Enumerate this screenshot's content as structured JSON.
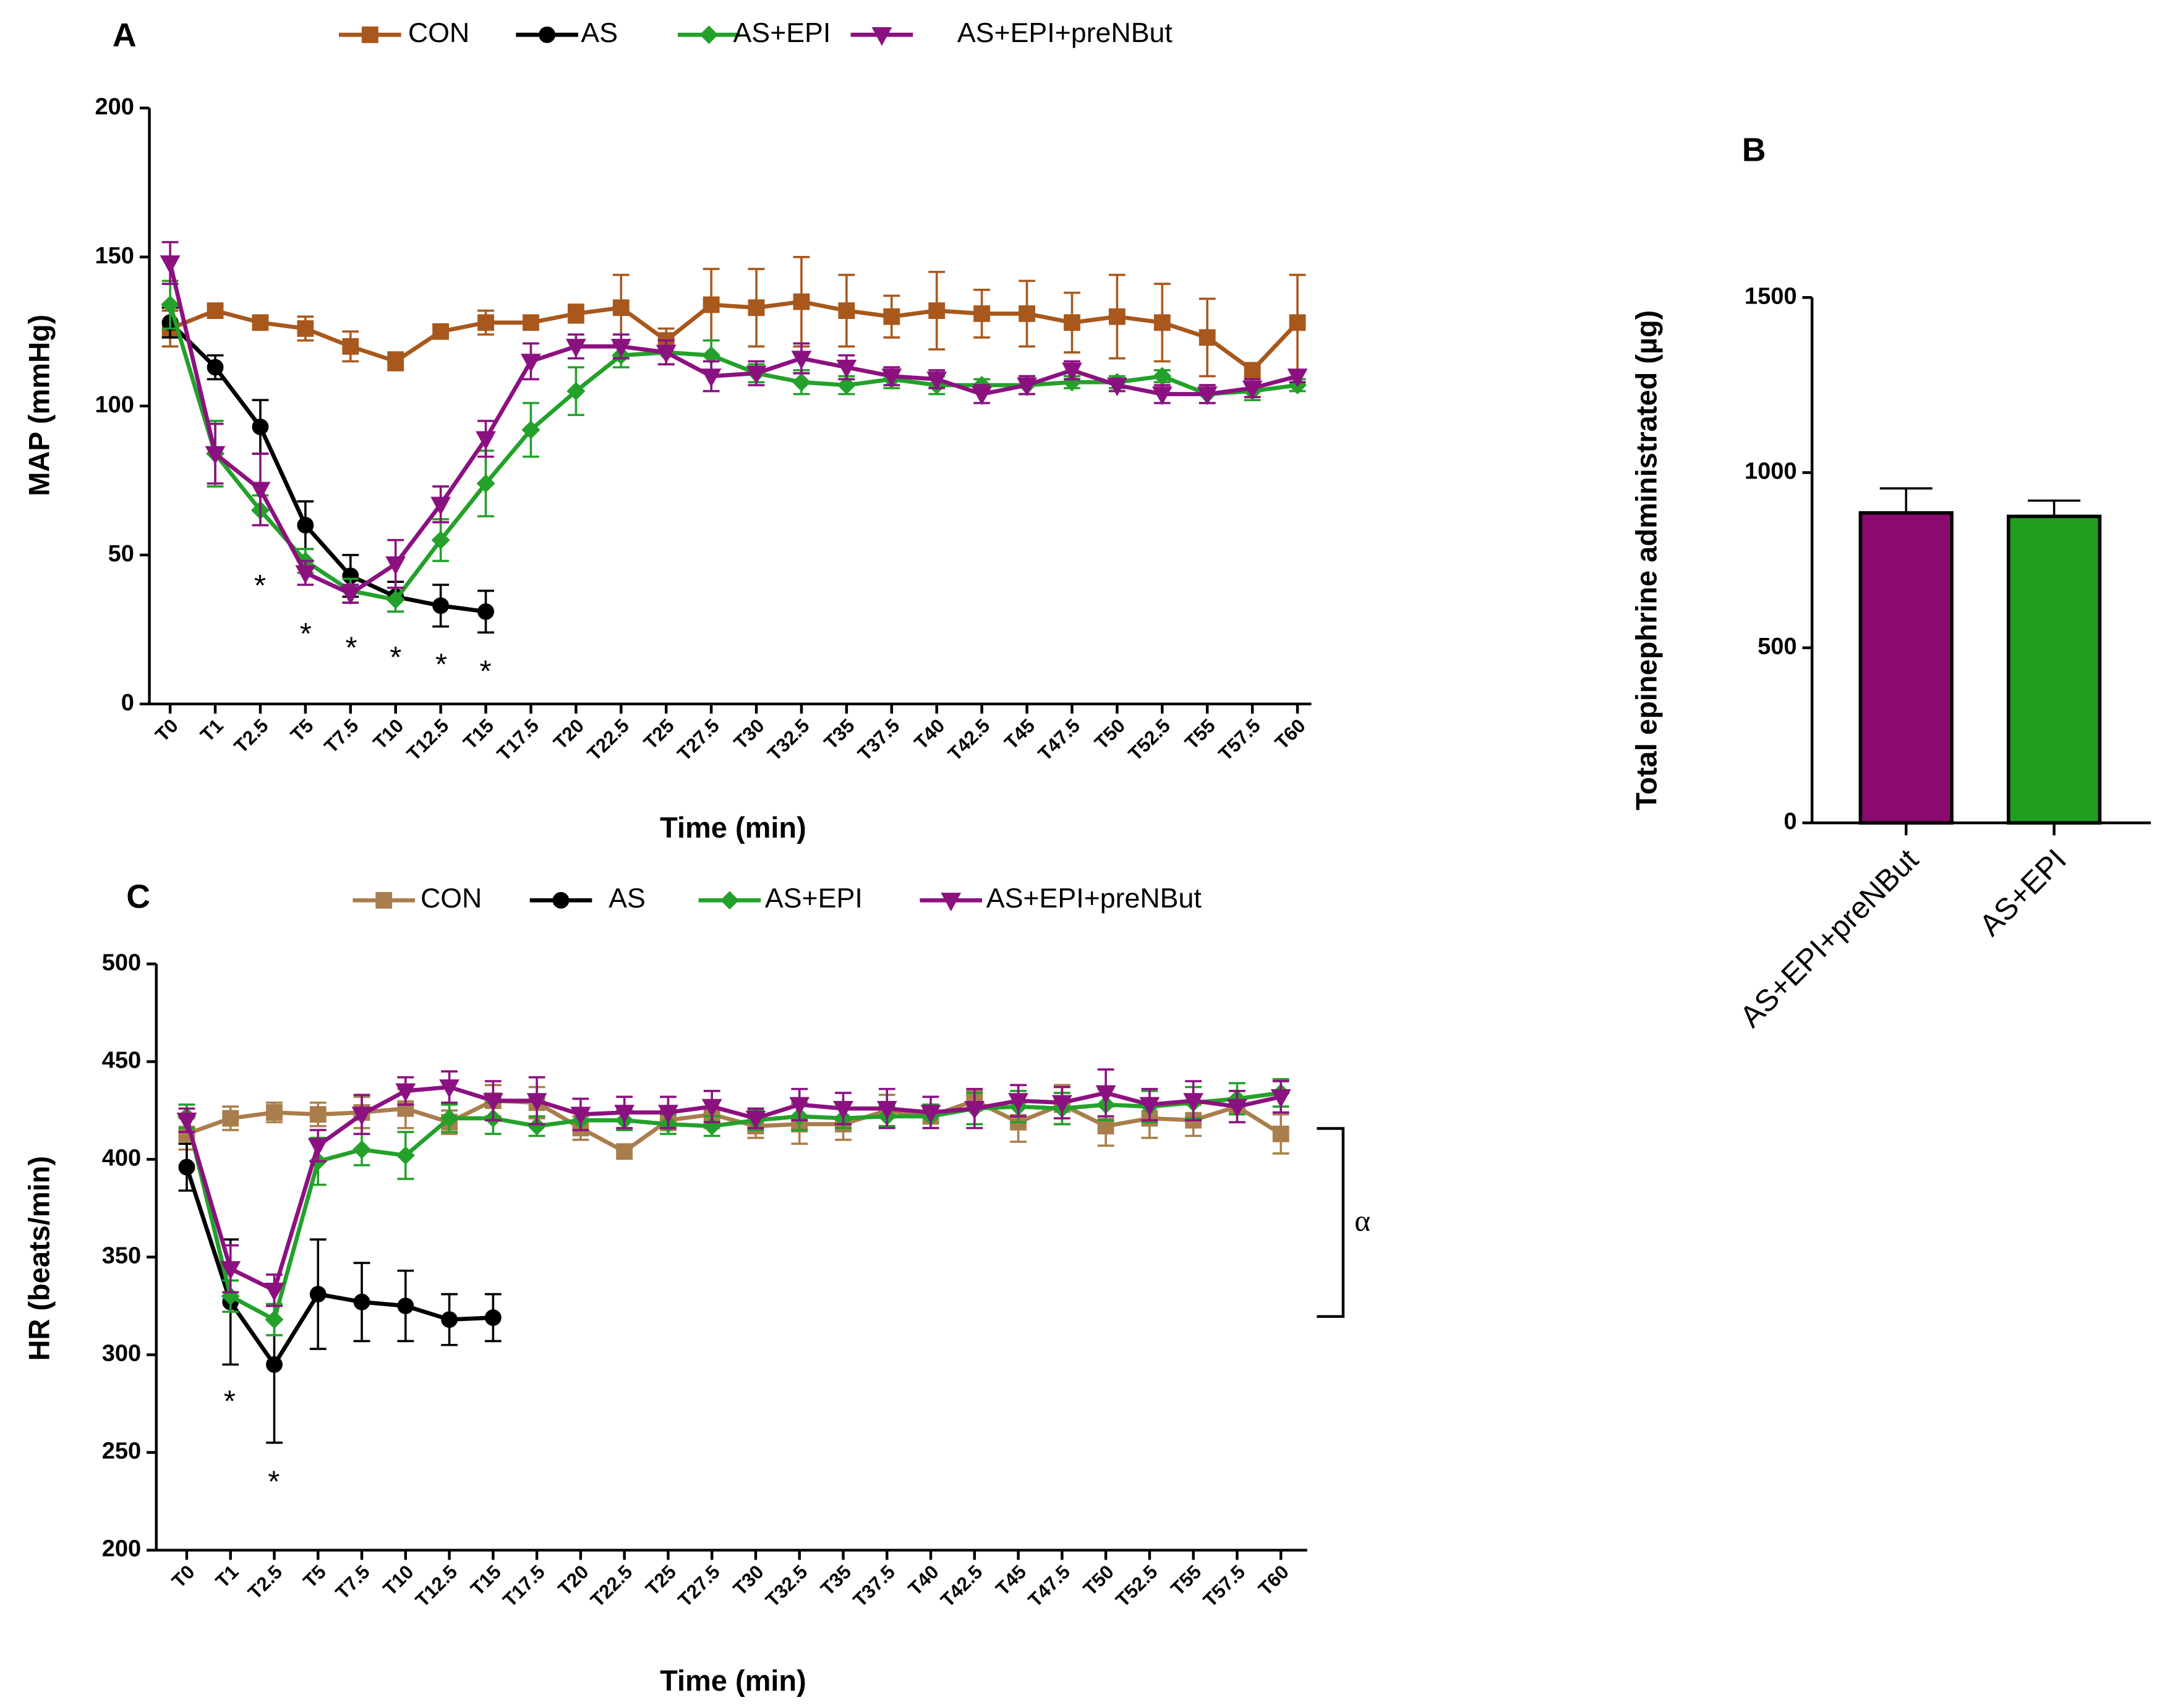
{
  "chart_data": [
    {
      "type": "line",
      "panel": "A",
      "ylabel": "MAP (mmHg)",
      "xlabel": "Time (min)",
      "categories": [
        "T0",
        "T1",
        "T2.5",
        "T5",
        "T7.5",
        "T10",
        "T12.5",
        "T15",
        "T17.5",
        "T20",
        "T22.5",
        "T25",
        "T27.5",
        "T30",
        "T32.5",
        "T35",
        "T37.5",
        "T40",
        "T42.5",
        "T45",
        "T47.5",
        "T50",
        "T52.5",
        "T55",
        "T57.5",
        "T60"
      ],
      "ylim": [
        0,
        200
      ],
      "yticks": [
        0,
        50,
        100,
        150,
        200
      ],
      "legend": "top",
      "series": [
        {
          "name": "CON",
          "color": "#a8581c",
          "marker": "square",
          "values": [
            126,
            132,
            128,
            126,
            120,
            115,
            125,
            128,
            128,
            131,
            133,
            122,
            134,
            133,
            135,
            132,
            130,
            132,
            131,
            131,
            128,
            130,
            128,
            123,
            112,
            128
          ],
          "errors": [
            6,
            2,
            2,
            4,
            5,
            3,
            2,
            4,
            2,
            3,
            11,
            4,
            12,
            13,
            15,
            12,
            7,
            13,
            8,
            11,
            10,
            14,
            13,
            13,
            2,
            16
          ]
        },
        {
          "name": "AS",
          "color": "#000000",
          "marker": "circle",
          "values": [
            128,
            113,
            93,
            60,
            43,
            36,
            33,
            31,
            null,
            null,
            null,
            null,
            null,
            null,
            null,
            null,
            null,
            null,
            null,
            null,
            null,
            null,
            null,
            null,
            null,
            null
          ],
          "errors": [
            5,
            4,
            9,
            8,
            7,
            5,
            7,
            7,
            null,
            null,
            null,
            null,
            null,
            null,
            null,
            null,
            null,
            null,
            null,
            null,
            null,
            null,
            null,
            null,
            null,
            null
          ]
        },
        {
          "name": "AS+EPI",
          "color": "#23a12a",
          "marker": "diamond",
          "values": [
            134,
            84,
            65,
            48,
            38,
            35,
            55,
            74,
            92,
            105,
            117,
            118,
            117,
            111,
            108,
            107,
            109,
            107,
            107,
            107,
            108,
            108,
            110,
            104,
            105,
            107
          ],
          "errors": [
            8,
            11,
            5,
            4,
            4,
            4,
            7,
            11,
            9,
            8,
            4,
            4,
            5,
            3,
            4,
            3,
            3,
            3,
            2,
            3,
            2,
            2,
            2,
            3,
            3,
            2
          ]
        },
        {
          "name": "AS+EPI+preNBut",
          "color": "#8c1180",
          "marker": "triangle-down",
          "values": [
            148,
            84,
            72,
            44,
            37,
            47,
            67,
            89,
            115,
            120,
            120,
            118,
            110,
            111,
            116,
            113,
            110,
            109,
            104,
            107,
            112,
            107,
            104,
            104,
            106,
            110
          ],
          "errors": [
            7,
            10,
            12,
            4,
            3,
            8,
            6,
            6,
            6,
            4,
            4,
            4,
            5,
            4,
            5,
            4,
            3,
            3,
            3,
            3,
            3,
            2,
            3,
            3,
            3,
            2
          ]
        }
      ],
      "annotations": [
        "*",
        "*",
        "*",
        "*",
        "*",
        "*"
      ]
    },
    {
      "type": "bar",
      "panel": "B",
      "ylabel": "Total epinephrine administrated (µg)",
      "categories": [
        "AS+EPI+preNBut",
        "AS+EPI"
      ],
      "values": [
        885,
        875
      ],
      "errors": [
        70,
        45
      ],
      "colors": [
        "#8b0a6e",
        "#1f9e1f"
      ],
      "ylim": [
        0,
        1500
      ],
      "yticks": [
        0,
        500,
        1000,
        1500
      ]
    },
    {
      "type": "line",
      "panel": "C",
      "ylabel": "HR (beats/min)",
      "xlabel": "Time (min)",
      "categories": [
        "T0",
        "T1",
        "T2.5",
        "T5",
        "T7.5",
        "T10",
        "T12.5",
        "T15",
        "T17.5",
        "T20",
        "T22.5",
        "T25",
        "T27.5",
        "T30",
        "T32.5",
        "T35",
        "T37.5",
        "T40",
        "T42.5",
        "T45",
        "T47.5",
        "T50",
        "T52.5",
        "T55",
        "T57.5",
        "T60"
      ],
      "ylim": [
        200,
        500
      ],
      "yticks": [
        200,
        250,
        300,
        350,
        400,
        450,
        500
      ],
      "legend": "top",
      "series": [
        {
          "name": "CON",
          "color": "#a97e4c",
          "marker": "square",
          "values": [
            413,
            421,
            424,
            423,
            424,
            426,
            419,
            430,
            429,
            416,
            404,
            420,
            423,
            417,
            418,
            418,
            425,
            422,
            430,
            419,
            428,
            417,
            421,
            420,
            427,
            413
          ],
          "errors": [
            8,
            6,
            5,
            6,
            8,
            10,
            6,
            8,
            8,
            6,
            3,
            5,
            7,
            6,
            10,
            8,
            8,
            6,
            5,
            10,
            10,
            10,
            10,
            8,
            8,
            10
          ]
        },
        {
          "name": "AS",
          "color": "#000000",
          "marker": "circle",
          "values": [
            396,
            327,
            295,
            331,
            327,
            325,
            318,
            319,
            null,
            null,
            null,
            null,
            null,
            null,
            null,
            null,
            null,
            null,
            null,
            null,
            null,
            null,
            null,
            null,
            null,
            null
          ],
          "errors": [
            12,
            32,
            40,
            28,
            20,
            18,
            13,
            12,
            null,
            null,
            null,
            null,
            null,
            null,
            null,
            null,
            null,
            null,
            null,
            null,
            null,
            null,
            null,
            null,
            null,
            null
          ]
        },
        {
          "name": "AS+EPI",
          "color": "#23a12a",
          "marker": "diamond",
          "values": [
            422,
            330,
            318,
            399,
            405,
            402,
            421,
            421,
            417,
            420,
            420,
            418,
            417,
            420,
            422,
            421,
            422,
            422,
            426,
            427,
            426,
            428,
            427,
            429,
            431,
            434
          ],
          "errors": [
            6,
            8,
            8,
            12,
            8,
            12,
            7,
            8,
            5,
            5,
            5,
            5,
            5,
            5,
            7,
            5,
            5,
            6,
            8,
            8,
            8,
            8,
            8,
            8,
            8,
            7
          ]
        },
        {
          "name": "AS+EPI+preNBut",
          "color": "#8c1180",
          "marker": "triangle-down",
          "values": [
            420,
            344,
            333,
            407,
            423,
            435,
            437,
            430,
            430,
            423,
            424,
            424,
            427,
            421,
            428,
            426,
            426,
            424,
            426,
            430,
            429,
            434,
            428,
            430,
            427,
            432
          ],
          "errors": [
            6,
            12,
            8,
            8,
            10,
            7,
            8,
            10,
            12,
            8,
            8,
            8,
            8,
            5,
            8,
            8,
            10,
            8,
            10,
            8,
            8,
            12,
            8,
            10,
            8,
            8
          ]
        }
      ],
      "annotations": [
        "*",
        "*",
        "α"
      ]
    }
  ]
}
